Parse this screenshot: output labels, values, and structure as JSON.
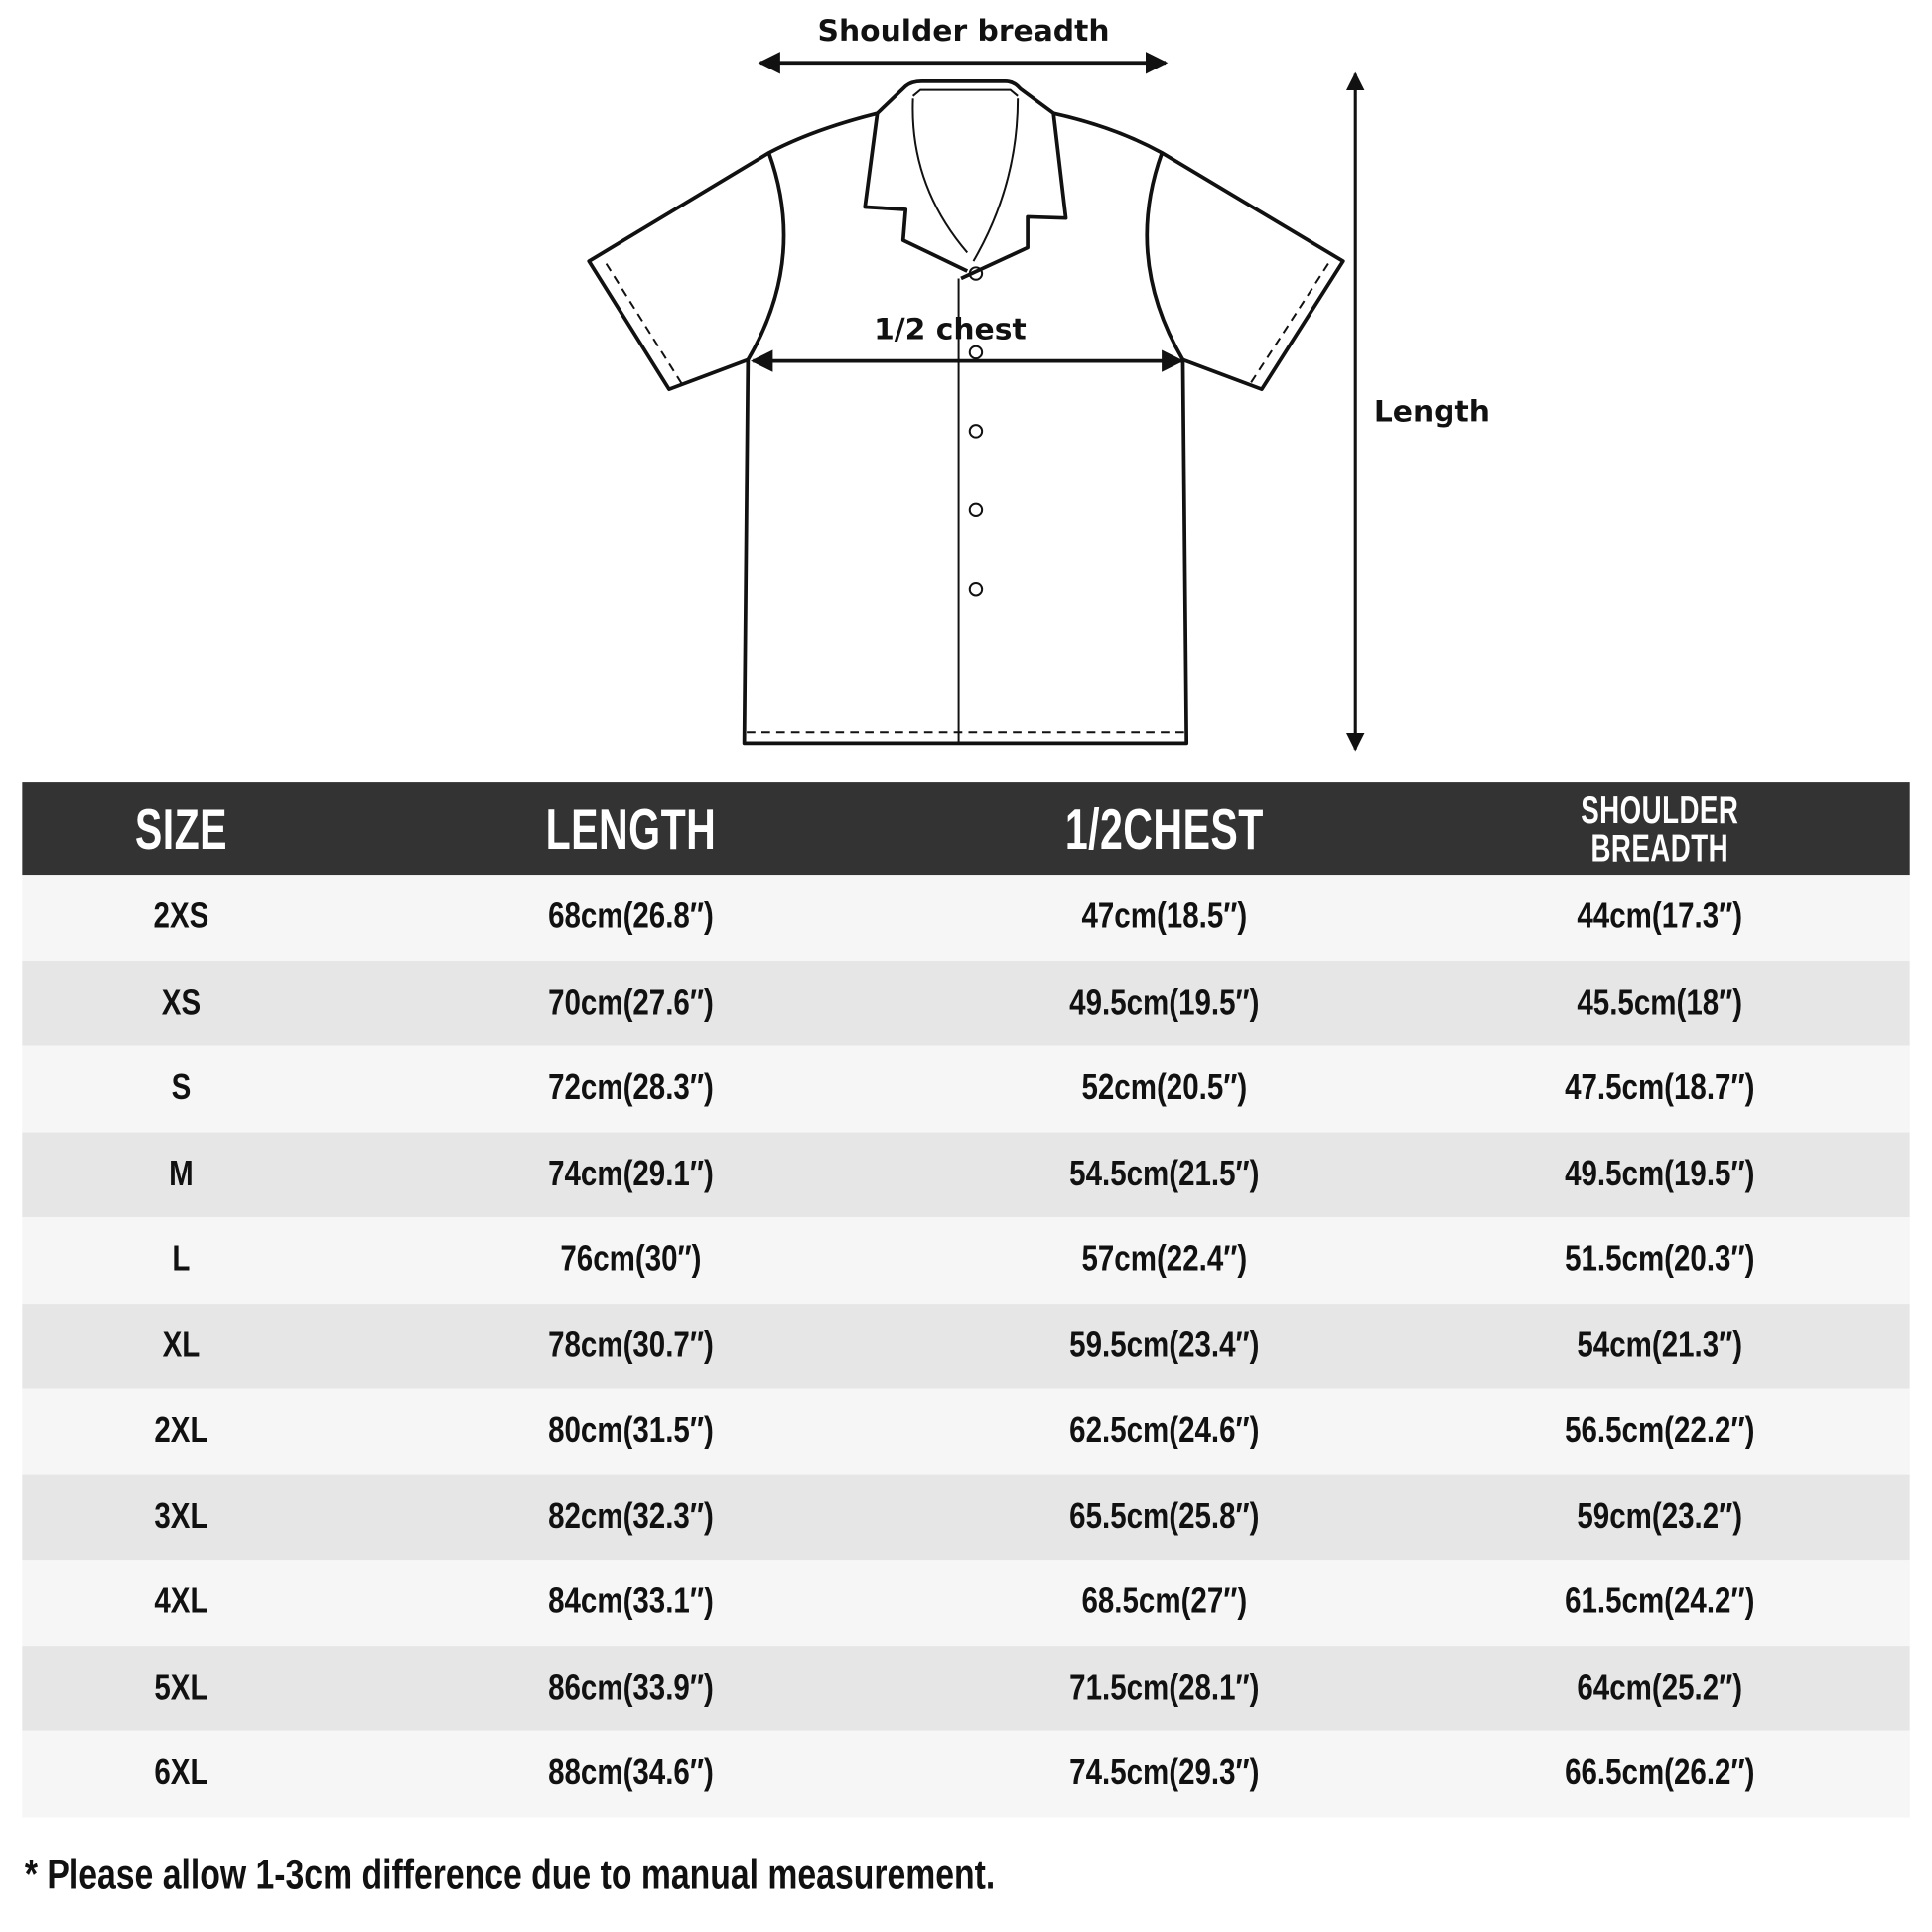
{
  "diagram": {
    "shoulder_label": "Shoulder breadth",
    "chest_label": "1/2 chest",
    "length_label": "Length"
  },
  "table": {
    "headers": [
      "SIZE",
      "LENGTH",
      "1/2CHEST",
      "SHOULDER BREADTH"
    ],
    "header_shoulder_lines": [
      "SHOULDER",
      "BREADTH"
    ],
    "rows": [
      [
        "2XS",
        "68cm(26.8″)",
        "47cm(18.5″)",
        "44cm(17.3″)"
      ],
      [
        "XS",
        "70cm(27.6″)",
        "49.5cm(19.5″)",
        "45.5cm(18″)"
      ],
      [
        "S",
        "72cm(28.3″)",
        "52cm(20.5″)",
        "47.5cm(18.7″)"
      ],
      [
        "M",
        "74cm(29.1″)",
        "54.5cm(21.5″)",
        "49.5cm(19.5″)"
      ],
      [
        "L",
        "76cm(30″)",
        "57cm(22.4″)",
        "51.5cm(20.3″)"
      ],
      [
        "XL",
        "78cm(30.7″)",
        "59.5cm(23.4″)",
        "54cm(21.3″)"
      ],
      [
        "2XL",
        "80cm(31.5″)",
        "62.5cm(24.6″)",
        "56.5cm(22.2″)"
      ],
      [
        "3XL",
        "82cm(32.3″)",
        "65.5cm(25.8″)",
        "59cm(23.2″)"
      ],
      [
        "4XL",
        "84cm(33.1″)",
        "68.5cm(27″)",
        "61.5cm(24.2″)"
      ],
      [
        "5XL",
        "86cm(33.9″)",
        "71.5cm(28.1″)",
        "64cm(25.2″)"
      ],
      [
        "6XL",
        "88cm(34.6″)",
        "74.5cm(29.3″)",
        "66.5cm(26.2″)"
      ]
    ],
    "header_bg": "#333333",
    "row_bg_light": "#f6f6f6",
    "row_bg_dark": "#e6e6e6"
  },
  "note": "* Please allow 1-3cm difference due to manual measurement."
}
